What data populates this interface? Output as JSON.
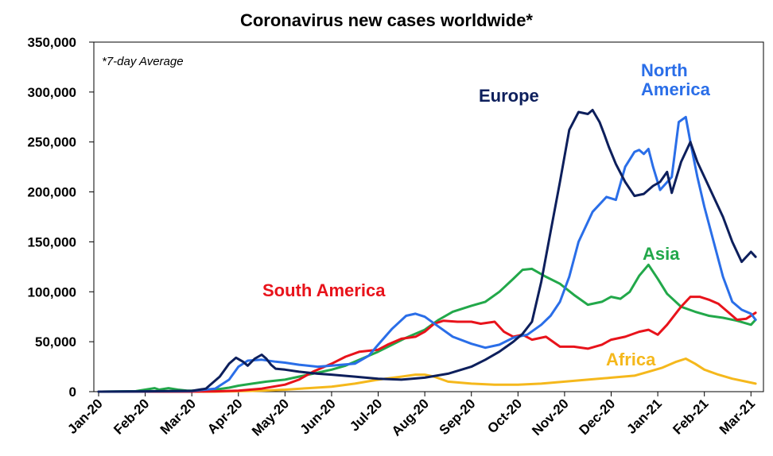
{
  "chart_data": {
    "type": "line",
    "title": "Coronavirus new cases worldwide*",
    "note": "*7-day Average",
    "xlabel": "",
    "ylabel": "",
    "ylim": [
      0,
      350000
    ],
    "yticks": [
      0,
      50000,
      100000,
      150000,
      200000,
      250000,
      300000,
      350000
    ],
    "ytick_labels": [
      "0",
      "50,000",
      "100,000",
      "150,000",
      "200,000",
      "250,000",
      "300,000",
      "350,000"
    ],
    "xlim": [
      0,
      14.2
    ],
    "xticks": [
      0,
      1,
      2,
      3,
      4,
      5,
      6,
      7,
      8,
      9,
      10,
      11,
      12,
      13,
      14
    ],
    "xtick_labels": [
      "Jan-20",
      "Feb-20",
      "Mar-20",
      "Apr-20",
      "May-20",
      "Jun-20",
      "Jul-20",
      "Aug-20",
      "Sep-20",
      "Oct-20",
      "Nov-20",
      "Dec-20",
      "Jan-21",
      "Feb-21",
      "Mar-21"
    ],
    "grid": false,
    "series": [
      {
        "name": "Europe",
        "color": "#0d1f5c",
        "label": "Europe",
        "label_lines": [
          "Europe"
        ],
        "x": [
          0,
          1,
          2,
          2.3,
          2.6,
          2.8,
          2.95,
          3.1,
          3.2,
          3.35,
          3.5,
          3.6,
          3.7,
          3.8,
          4.0,
          4.3,
          4.7,
          5.0,
          5.5,
          6.0,
          6.5,
          7.0,
          7.5,
          8.0,
          8.3,
          8.6,
          8.9,
          9.1,
          9.3,
          9.5,
          9.7,
          9.9,
          10.1,
          10.3,
          10.5,
          10.6,
          10.75,
          10.85,
          10.95,
          11.1,
          11.3,
          11.5,
          11.7,
          11.9,
          12.05,
          12.2,
          12.3,
          12.5,
          12.7,
          12.85,
          13.0,
          13.2,
          13.4,
          13.6,
          13.8,
          14.0,
          14.1
        ],
        "values": [
          0,
          300,
          800,
          3000,
          15000,
          28000,
          34000,
          30000,
          26000,
          33000,
          37000,
          33000,
          27000,
          23000,
          22000,
          20000,
          18000,
          17000,
          15000,
          13000,
          12000,
          14000,
          18000,
          25000,
          32000,
          40000,
          50000,
          58000,
          70000,
          110000,
          160000,
          210000,
          262000,
          280000,
          278000,
          282000,
          270000,
          258000,
          245000,
          228000,
          210000,
          196000,
          198000,
          206000,
          210000,
          220000,
          199000,
          230000,
          250000,
          230000,
          215000,
          195000,
          175000,
          150000,
          130000,
          140000,
          135000
        ]
      },
      {
        "name": "North America",
        "color": "#2a6ee8",
        "label": "North America",
        "label_lines": [
          "North",
          "America"
        ],
        "x": [
          0,
          1,
          2,
          2.5,
          2.8,
          3.0,
          3.2,
          3.5,
          3.8,
          4.0,
          4.3,
          4.7,
          5.0,
          5.5,
          5.8,
          6.0,
          6.3,
          6.6,
          6.8,
          7.0,
          7.3,
          7.6,
          8.0,
          8.3,
          8.6,
          8.9,
          9.2,
          9.5,
          9.7,
          9.9,
          10.1,
          10.3,
          10.6,
          10.9,
          11.1,
          11.3,
          11.5,
          11.6,
          11.7,
          11.8,
          11.9,
          12.05,
          12.3,
          12.45,
          12.6,
          12.7,
          12.85,
          13.0,
          13.2,
          13.4,
          13.6,
          13.8,
          14.0,
          14.1
        ],
        "values": [
          0,
          200,
          600,
          3000,
          12000,
          25000,
          31000,
          32000,
          30000,
          29000,
          27000,
          25000,
          26000,
          28000,
          36000,
          47000,
          63000,
          76000,
          78000,
          75000,
          65000,
          55000,
          48000,
          44000,
          47000,
          54000,
          57000,
          67000,
          76000,
          90000,
          115000,
          150000,
          180000,
          195000,
          192000,
          225000,
          240000,
          242000,
          238000,
          243000,
          225000,
          202000,
          215000,
          270000,
          275000,
          250000,
          215000,
          185000,
          150000,
          115000,
          90000,
          82000,
          78000,
          72000
        ]
      },
      {
        "name": "Asia",
        "color": "#22a84a",
        "label": "Asia",
        "label_lines": [
          "Asia"
        ],
        "x": [
          0,
          0.8,
          1.0,
          1.2,
          1.3,
          1.5,
          1.7,
          1.9,
          2.2,
          2.5,
          2.8,
          3.0,
          3.3,
          3.6,
          4.0,
          4.3,
          4.6,
          5.0,
          5.3,
          5.6,
          6.0,
          6.3,
          6.6,
          7.0,
          7.3,
          7.6,
          8.0,
          8.3,
          8.6,
          8.9,
          9.1,
          9.3,
          9.6,
          9.9,
          10.2,
          10.5,
          10.8,
          11.0,
          11.2,
          11.4,
          11.6,
          11.8,
          12.0,
          12.2,
          12.5,
          12.8,
          13.1,
          13.4,
          13.7,
          14.0,
          14.1
        ],
        "values": [
          0,
          500,
          2000,
          3500,
          2000,
          3500,
          2000,
          1000,
          1000,
          2000,
          4000,
          6000,
          8000,
          10000,
          12000,
          15000,
          18000,
          22000,
          26000,
          32000,
          40000,
          47000,
          54000,
          62000,
          72000,
          80000,
          86000,
          90000,
          100000,
          113000,
          122000,
          123000,
          115000,
          108000,
          97000,
          87000,
          90000,
          95000,
          93000,
          100000,
          116000,
          127000,
          113000,
          98000,
          85000,
          80000,
          76000,
          74000,
          71000,
          67000,
          72000
        ]
      },
      {
        "name": "South America",
        "color": "#e8131b",
        "label": "South America",
        "label_lines": [
          "South America"
        ],
        "x": [
          0,
          2.0,
          2.5,
          3.0,
          3.5,
          4.0,
          4.3,
          4.6,
          5.0,
          5.3,
          5.6,
          6.0,
          6.2,
          6.5,
          6.8,
          7.0,
          7.2,
          7.4,
          7.7,
          8.0,
          8.2,
          8.5,
          8.7,
          8.9,
          9.1,
          9.3,
          9.6,
          9.9,
          10.2,
          10.5,
          10.8,
          11.0,
          11.3,
          11.6,
          11.8,
          12.0,
          12.2,
          12.5,
          12.7,
          12.9,
          13.1,
          13.3,
          13.5,
          13.7,
          13.9,
          14.1
        ],
        "values": [
          0,
          0,
          300,
          1000,
          3000,
          7000,
          12000,
          20000,
          28000,
          35000,
          40000,
          42000,
          47000,
          53000,
          55000,
          60000,
          68000,
          71000,
          70000,
          70000,
          68000,
          70000,
          60000,
          55000,
          57000,
          52000,
          55000,
          45000,
          45000,
          43000,
          47000,
          52000,
          55000,
          60000,
          62000,
          57000,
          67000,
          85000,
          95000,
          95000,
          92000,
          88000,
          80000,
          72000,
          73000,
          79000
        ]
      },
      {
        "name": "Africa",
        "color": "#f5b81c",
        "label": "Africa",
        "label_lines": [
          "Africa"
        ],
        "x": [
          0,
          2.5,
          3.0,
          3.5,
          4.0,
          4.5,
          5.0,
          5.5,
          6.0,
          6.5,
          6.8,
          7.0,
          7.2,
          7.5,
          8.0,
          8.5,
          9.0,
          9.5,
          10.0,
          10.5,
          11.0,
          11.5,
          11.8,
          12.1,
          12.4,
          12.6,
          12.8,
          13.0,
          13.3,
          13.6,
          13.9,
          14.1
        ],
        "values": [
          0,
          0,
          500,
          1000,
          2000,
          3500,
          5000,
          8000,
          12000,
          15000,
          17000,
          17000,
          15000,
          10000,
          8000,
          7000,
          7000,
          8000,
          10000,
          12000,
          14000,
          16000,
          20000,
          24000,
          30000,
          33000,
          28000,
          22000,
          17000,
          13000,
          10000,
          8000
        ]
      }
    ]
  }
}
